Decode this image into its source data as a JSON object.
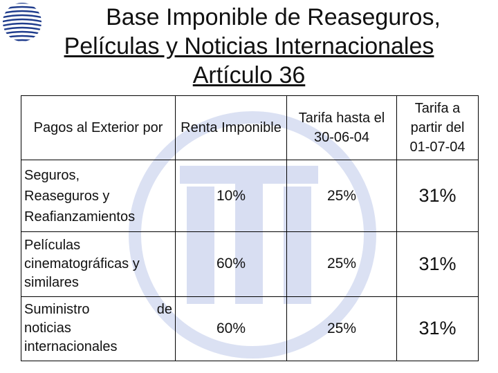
{
  "slide": {
    "title_line1": "Base Imponible de Reaseguros,",
    "title_line2": "Películas y Noticias Internacionales",
    "title_line3": "Artículo 36"
  },
  "table": {
    "headers": {
      "col1": "Pagos al Exterior por",
      "col2": "Renta Imponible",
      "col3": "Tarifa hasta el 30-06-04",
      "col4": "Tarifa a partir del 01-07-04"
    },
    "rows": [
      {
        "concept_line1": "Seguros,",
        "concept_line2": "Reaseguros y",
        "concept_line3": "Reafianzamientos",
        "renta": "10%",
        "tarifa_old": "25%",
        "tarifa_new": "31%"
      },
      {
        "concept_line1": "Películas",
        "concept_line2": "cinematográficas y",
        "concept_line3": "similares",
        "renta": "60%",
        "tarifa_old": "25%",
        "tarifa_new": "31%"
      },
      {
        "concept_line1": "Suministro",
        "concept_word_de": "de",
        "concept_line2": "noticias",
        "concept_line3": "internacionales",
        "renta": "60%",
        "tarifa_old": "25%",
        "tarifa_new": "31%"
      }
    ]
  },
  "colors": {
    "watermark": "#d6dcf0",
    "logo": "#1f3c8c",
    "border": "#000000"
  },
  "icons": {
    "logo": "globe-logo-icon",
    "watermark": "faded-logo-watermark-icon"
  }
}
